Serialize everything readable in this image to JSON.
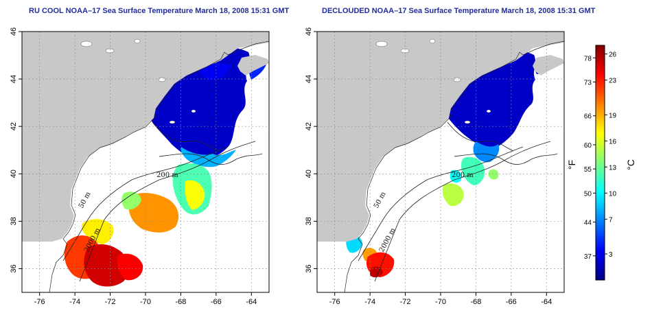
{
  "panels": [
    {
      "title": "RU COOL NOAA–17 Sea Surface Temperature March 18, 2008 15:31 GMT"
    },
    {
      "title": "DECLOUDED NOAA–17 Sea Surface Temperature March 18, 2008 15:31 GMT"
    }
  ],
  "map": {
    "lon_range": [
      -77,
      -63
    ],
    "lat_range": [
      35,
      46
    ],
    "x_ticks": [
      "-76",
      "-74",
      "-72",
      "-70",
      "-68",
      "-66",
      "-64"
    ],
    "x_tick_values": [
      -76,
      -74,
      -72,
      -70,
      -68,
      -66,
      -64
    ],
    "y_ticks": [
      "36",
      "38",
      "40",
      "42",
      "44",
      "46"
    ],
    "y_tick_values": [
      36,
      38,
      40,
      42,
      44,
      46
    ],
    "grid": "dotted",
    "land_color": "#c8c8c8",
    "ocean_color": "#ffffff",
    "isobath_labels": [
      "200 m",
      "50 m",
      "2000 m"
    ]
  },
  "colorbar": {
    "fahrenheit_label": "°F",
    "celsius_label": "°C",
    "fahrenheit_ticks": [
      "78",
      "73",
      "66",
      "60",
      "55",
      "50",
      "44",
      "37"
    ],
    "fahrenheit_values": [
      78,
      73,
      66,
      60,
      55,
      50,
      44,
      37
    ],
    "celsius_ticks": [
      "26",
      "23",
      "19",
      "16",
      "13",
      "10",
      "7",
      "3"
    ],
    "celsius_values": [
      26,
      23,
      19,
      16,
      13,
      10,
      7,
      3
    ],
    "celsius_range": [
      0,
      27
    ],
    "colors": [
      "#00007f",
      "#0000ff",
      "#007fff",
      "#00ffff",
      "#7fff7f",
      "#ffff00",
      "#ff7f00",
      "#ff0000",
      "#7f0000"
    ]
  }
}
